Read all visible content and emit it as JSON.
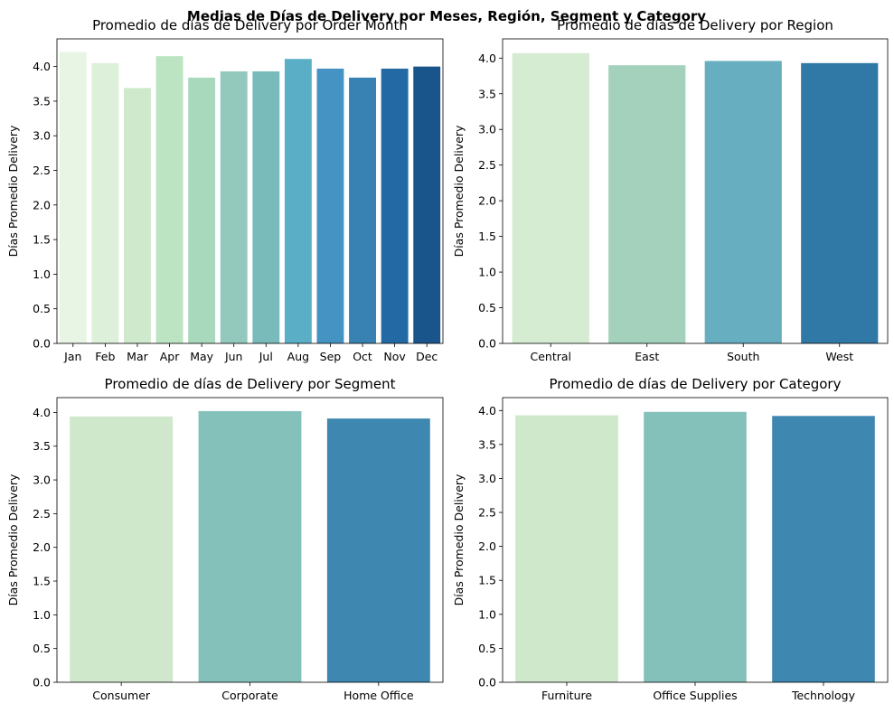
{
  "figure": {
    "title": "Medias de Días de Delivery por Meses, Región, Segment y Category"
  },
  "chart_data": [
    {
      "type": "bar",
      "title": "Promedio de días de Delivery por Order Month",
      "xlabel": "",
      "ylabel": "Días Promedio Delivery",
      "ylim": [
        0,
        4.4
      ],
      "yticks": [
        "0.0",
        "0.5",
        "1.0",
        "1.5",
        "2.0",
        "2.5",
        "3.0",
        "3.5",
        "4.0"
      ],
      "categories": [
        "Jan",
        "Feb",
        "Mar",
        "Apr",
        "May",
        "Jun",
        "Jul",
        "Aug",
        "Sep",
        "Oct",
        "Nov",
        "Dec"
      ],
      "values": [
        4.21,
        4.05,
        3.69,
        4.15,
        3.84,
        3.93,
        3.93,
        4.11,
        3.97,
        3.84,
        3.97,
        4.0
      ],
      "colors": [
        "#e8f5e4",
        "#ddf0d9",
        "#cfe9cc",
        "#bde4c2",
        "#a9d9bd",
        "#92c9bc",
        "#79bbba",
        "#5aaec6",
        "#4593c2",
        "#3782b2",
        "#2369a3",
        "#19558b"
      ]
    },
    {
      "type": "bar",
      "title": "Promedio de días de Delivery por Region",
      "xlabel": "",
      "ylabel": "Días Promedio Delivery",
      "ylim": [
        0,
        4.27
      ],
      "yticks": [
        "0.0",
        "0.5",
        "1.0",
        "1.5",
        "2.0",
        "2.5",
        "3.0",
        "3.5",
        "4.0"
      ],
      "categories": [
        "Central",
        "East",
        "South",
        "West"
      ],
      "values": [
        4.07,
        3.9,
        3.96,
        3.93
      ],
      "colors": [
        "#d6ecd2",
        "#a4d1bc",
        "#67afc0",
        "#3079a6"
      ]
    },
    {
      "type": "bar",
      "title": "Promedio de días de Delivery por Segment",
      "xlabel": "",
      "ylabel": "Días Promedio Delivery",
      "ylim": [
        0,
        4.22
      ],
      "yticks": [
        "0.0",
        "0.5",
        "1.0",
        "1.5",
        "2.0",
        "2.5",
        "3.0",
        "3.5",
        "4.0"
      ],
      "categories": [
        "Consumer",
        "Corporate",
        "Home Office"
      ],
      "values": [
        3.94,
        4.02,
        3.91
      ],
      "colors": [
        "#cfe7cb",
        "#85c1bb",
        "#3d87b0"
      ]
    },
    {
      "type": "bar",
      "title": "Promedio de días de Delivery por Category",
      "xlabel": "",
      "ylabel": "Días Promedio Delivery",
      "ylim": [
        0,
        4.19
      ],
      "yticks": [
        "0.0",
        "0.5",
        "1.0",
        "1.5",
        "2.0",
        "2.5",
        "3.0",
        "3.5",
        "4.0"
      ],
      "categories": [
        "Furniture",
        "Office Supplies",
        "Technology"
      ],
      "values": [
        3.93,
        3.98,
        3.92
      ],
      "colors": [
        "#cfe7cb",
        "#85c1bb",
        "#3d87b0"
      ]
    }
  ]
}
